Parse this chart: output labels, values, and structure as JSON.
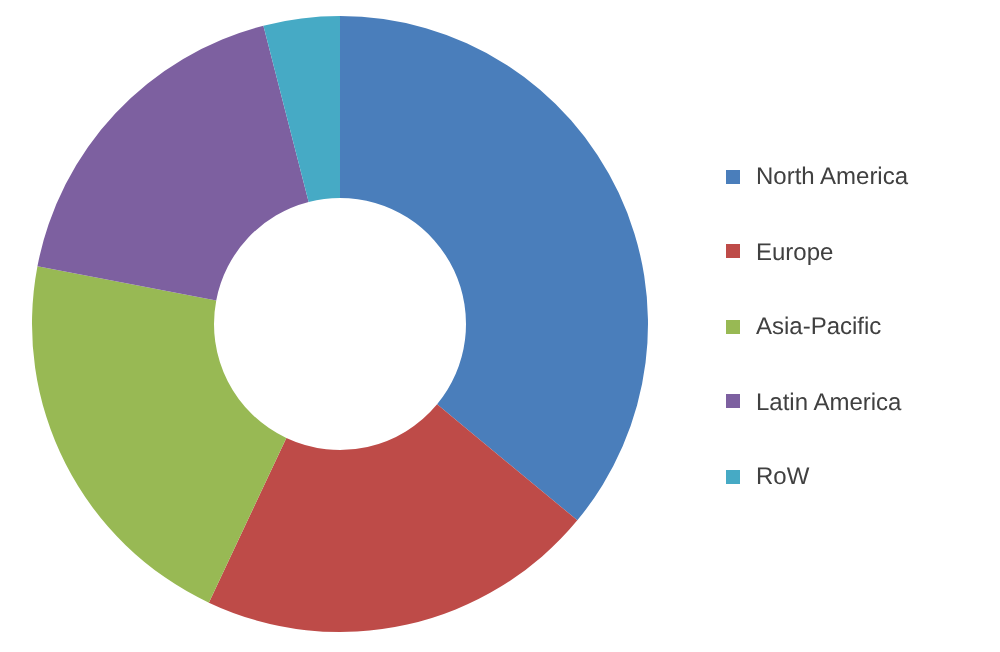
{
  "chart_data": {
    "type": "donut",
    "categories": [
      "North America",
      "Europe",
      "Asia-Pacific",
      "Latin America",
      "RoW"
    ],
    "values": [
      36,
      21,
      21,
      18,
      4
    ],
    "colors": [
      "#4a7ebb",
      "#be4b48",
      "#98b954",
      "#7d60a0",
      "#46aac5"
    ],
    "legend": "right"
  }
}
